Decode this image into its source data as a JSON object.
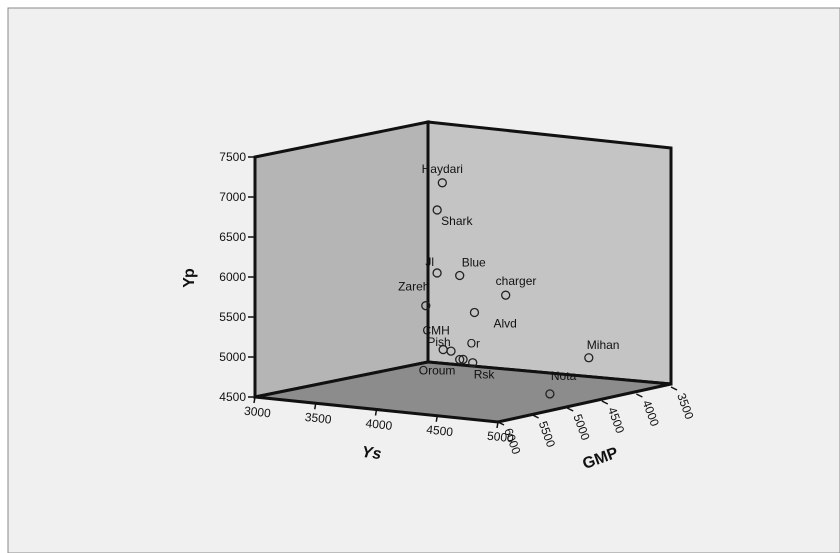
{
  "chart_data": {
    "type": "scatter",
    "subtype": "3d-scatter",
    "title": "",
    "axes": {
      "x": {
        "label": "Ys",
        "range": [
          3000,
          5000
        ],
        "ticks": [
          3000,
          3500,
          4000,
          4500,
          5000
        ]
      },
      "y": {
        "label": "Yp",
        "range": [
          4500,
          7500
        ],
        "ticks": [
          4500,
          5000,
          5500,
          6000,
          6500,
          7000,
          7500
        ]
      },
      "z": {
        "label": "GMP",
        "range": [
          3500,
          6000
        ],
        "ticks": [
          6000,
          5500,
          5000,
          4500,
          4000,
          3500
        ]
      }
    },
    "grid": false,
    "legend": false,
    "colors": {
      "background": "#f0f0f0",
      "back_wall": "#b5b5b5",
      "side_wall": "#c4c4c4",
      "floor": "#8c8c8c",
      "marker": "#222222"
    },
    "points": [
      {
        "label": "Haydari",
        "x": 4200,
        "y": 7260,
        "z": 5400
      },
      {
        "label": "Shark",
        "x": 4300,
        "y": 6980,
        "z": 5650
      },
      {
        "label": "Jl",
        "x": 4100,
        "y": 6100,
        "z": 5300
      },
      {
        "label": "Blue",
        "x": 4400,
        "y": 6150,
        "z": 5500
      },
      {
        "label": "charger",
        "x": 4750,
        "y": 5950,
        "z": 5450
      },
      {
        "label": "Zareh",
        "x": 3950,
        "y": 5650,
        "z": 5200
      },
      {
        "label": "Alvd",
        "x": 4550,
        "y": 5720,
        "z": 5550
      },
      {
        "label": "Pish",
        "x": 4300,
        "y": 5180,
        "z": 5450
      },
      {
        "label": "CMH",
        "x": 4150,
        "y": 5150,
        "z": 5300
      },
      {
        "label": "Or",
        "x": 4400,
        "y": 5100,
        "z": 5500
      },
      {
        "label": "Oroum",
        "x": 4200,
        "y": 5000,
        "z": 5100
      },
      {
        "label": "Rsk",
        "x": 4450,
        "y": 5050,
        "z": 5400
      },
      {
        "label": "Nota",
        "x": 5000,
        "y": 4720,
        "z": 5250
      },
      {
        "label": "Mihan",
        "x": 4950,
        "y": 5050,
        "z": 4600
      }
    ]
  }
}
